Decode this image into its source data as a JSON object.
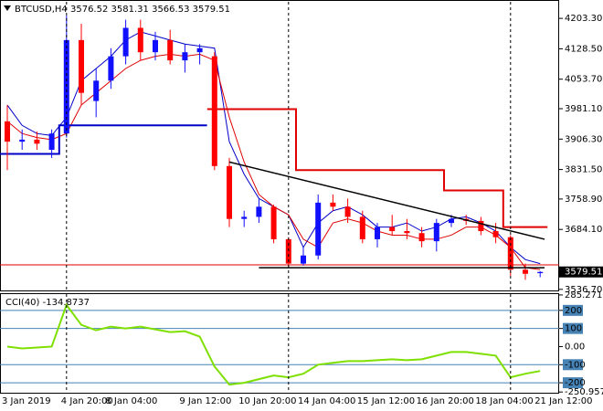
{
  "chart_data": [
    {
      "type": "candlestick",
      "title": "BTCUSD,H4",
      "categories": [
        "3 Jan 2019",
        null,
        null,
        null,
        "4 Jan 20:00",
        null,
        null,
        "8 Jan 04:00",
        null,
        null,
        null,
        null,
        "9 Jan 12:00",
        null,
        null,
        null,
        "10 Jan 20:00",
        null,
        null,
        null,
        "14 Jan 04:00",
        null,
        null,
        null,
        "15 Jan 12:00",
        null,
        null,
        null,
        "16 Jan 20:00",
        null,
        null,
        null,
        "18 Jan 04:00",
        null,
        null,
        null,
        "21 Jan 12:00"
      ],
      "open": [
        3950,
        3900,
        3905,
        3880,
        3920,
        4150,
        4000,
        4050,
        4110,
        4180,
        4120,
        4150,
        4100,
        4120,
        4110,
        3840,
        3710,
        3715,
        3740,
        3660,
        3600,
        3620,
        3750,
        3740,
        3715,
        3660,
        3690,
        3680,
        3675,
        3655,
        3700,
        3710,
        3705,
        3680,
        3665,
        3585,
        3576.52
      ],
      "high": [
        3990,
        3930,
        3925,
        3930,
        4210,
        4190,
        4080,
        4130,
        4200,
        4200,
        4170,
        4175,
        4140,
        4140,
        4120,
        3860,
        3730,
        3760,
        3745,
        3665,
        3640,
        3770,
        3770,
        3760,
        3730,
        3700,
        3720,
        3710,
        3690,
        3710,
        3720,
        3720,
        3715,
        3700,
        3670,
        3600,
        3581.31
      ],
      "low": [
        3830,
        3880,
        3880,
        3860,
        3910,
        3990,
        3960,
        4030,
        4090,
        4100,
        4100,
        4090,
        4070,
        4090,
        3830,
        3690,
        3690,
        3700,
        3650,
        3590,
        3595,
        3610,
        3730,
        3700,
        3650,
        3640,
        3670,
        3660,
        3640,
        3630,
        3690,
        3695,
        3670,
        3650,
        3570,
        3560,
        3566.53
      ],
      "close": [
        3900,
        3905,
        3895,
        3920,
        4150,
        4020,
        4050,
        4110,
        4180,
        4120,
        4150,
        4100,
        4120,
        4130,
        3840,
        3710,
        3715,
        3740,
        3660,
        3600,
        3620,
        3750,
        3740,
        3715,
        3660,
        3690,
        3680,
        3675,
        3655,
        3700,
        3710,
        3705,
        3680,
        3665,
        3585,
        3575,
        3579.51
      ],
      "up_color": "#1010ff",
      "down_color": "#ff0000",
      "series": [
        {
          "color": "#0000c8",
          "step": false,
          "values": [
            3990,
            3940,
            3920,
            3915,
            3960,
            4050,
            4080,
            4110,
            4150,
            4170,
            4160,
            4150,
            4140,
            4135,
            4130,
            3900,
            3820,
            3760,
            3740,
            3720,
            3640,
            3700,
            3730,
            3740,
            3720,
            3690,
            3690,
            3700,
            3680,
            3690,
            3710,
            3715,
            3700,
            3680,
            3640,
            3610,
            3600
          ]
        },
        {
          "color": "#e00000",
          "step": false,
          "values": [
            3950,
            3920,
            3910,
            3905,
            3920,
            3990,
            4020,
            4050,
            4080,
            4100,
            4110,
            4115,
            4110,
            4115,
            4100,
            3960,
            3850,
            3770,
            3740,
            3720,
            3660,
            3640,
            3700,
            3710,
            3700,
            3680,
            3670,
            3670,
            3660,
            3660,
            3670,
            3690,
            3690,
            3670,
            3640,
            3590,
            3585
          ]
        },
        {
          "color": "#e00000",
          "step": true,
          "values": [
            null,
            null,
            null,
            null,
            null,
            null,
            null,
            null,
            null,
            null,
            null,
            null,
            null,
            null,
            3980,
            3980,
            3980,
            3980,
            3980,
            3980,
            3830,
            3830,
            3830,
            3830,
            3830,
            3830,
            3830,
            3830,
            3830,
            3830,
            3780,
            3780,
            3780,
            3780,
            3690,
            3690,
            3690
          ]
        },
        {
          "color": "#0000c8",
          "step": true,
          "values": [
            3870,
            3870,
            3870,
            3870,
            3940,
            3940,
            3940,
            3940,
            3940,
            3940,
            3940,
            3940,
            3940,
            3940,
            null,
            null,
            null,
            null,
            null,
            null,
            null,
            null,
            null,
            null,
            null,
            null,
            null,
            null,
            null,
            null,
            null,
            null,
            null,
            null,
            null,
            null,
            null
          ]
        }
      ],
      "hlines": [
        {
          "value": 3596.8,
          "color": "#e00000"
        }
      ],
      "trendlines": [
        {
          "x": [
            15,
            36.3
          ],
          "y": [
            3850,
            3660
          ]
        },
        {
          "x": [
            17,
            36.3
          ],
          "y": [
            3590,
            3590
          ]
        }
      ],
      "ylim": [
        3534,
        4244
      ],
      "yticks": [
        {
          "value": 4203.3,
          "label": "4203.30"
        },
        {
          "value": 4128.5,
          "label": "4128.50"
        },
        {
          "value": 4053.7,
          "label": "4053.70"
        },
        {
          "value": 3981.1,
          "label": "3981.10"
        },
        {
          "value": 3906.3,
          "label": "3906.30"
        },
        {
          "value": 3831.5,
          "label": "3831.50"
        },
        {
          "value": 3758.9,
          "label": "3758.90"
        },
        {
          "value": 3684.1,
          "label": "3684.10"
        },
        {
          "value": 3536.7,
          "label": "3536.70"
        }
      ]
    },
    {
      "type": "line",
      "title": "CCI(40)",
      "color": "#7ee000",
      "values": [
        0,
        -10,
        -5,
        0,
        230,
        120,
        90,
        110,
        100,
        110,
        95,
        80,
        85,
        55,
        -110,
        -210,
        -200,
        -180,
        -160,
        -170,
        -150,
        -100,
        -90,
        -80,
        -80,
        -75,
        -70,
        -75,
        -70,
        -50,
        -30,
        -30,
        -40,
        -50,
        -170,
        -150,
        -134.8737
      ],
      "levels": [
        200,
        100,
        -100,
        -200
      ],
      "ylim": [
        -255,
        290
      ],
      "yticks": [
        285.271,
        200,
        100,
        {
          "value": 0,
          "label": "0.00"
        },
        -100,
        -200,
        -250.9572
      ]
    }
  ]
}
